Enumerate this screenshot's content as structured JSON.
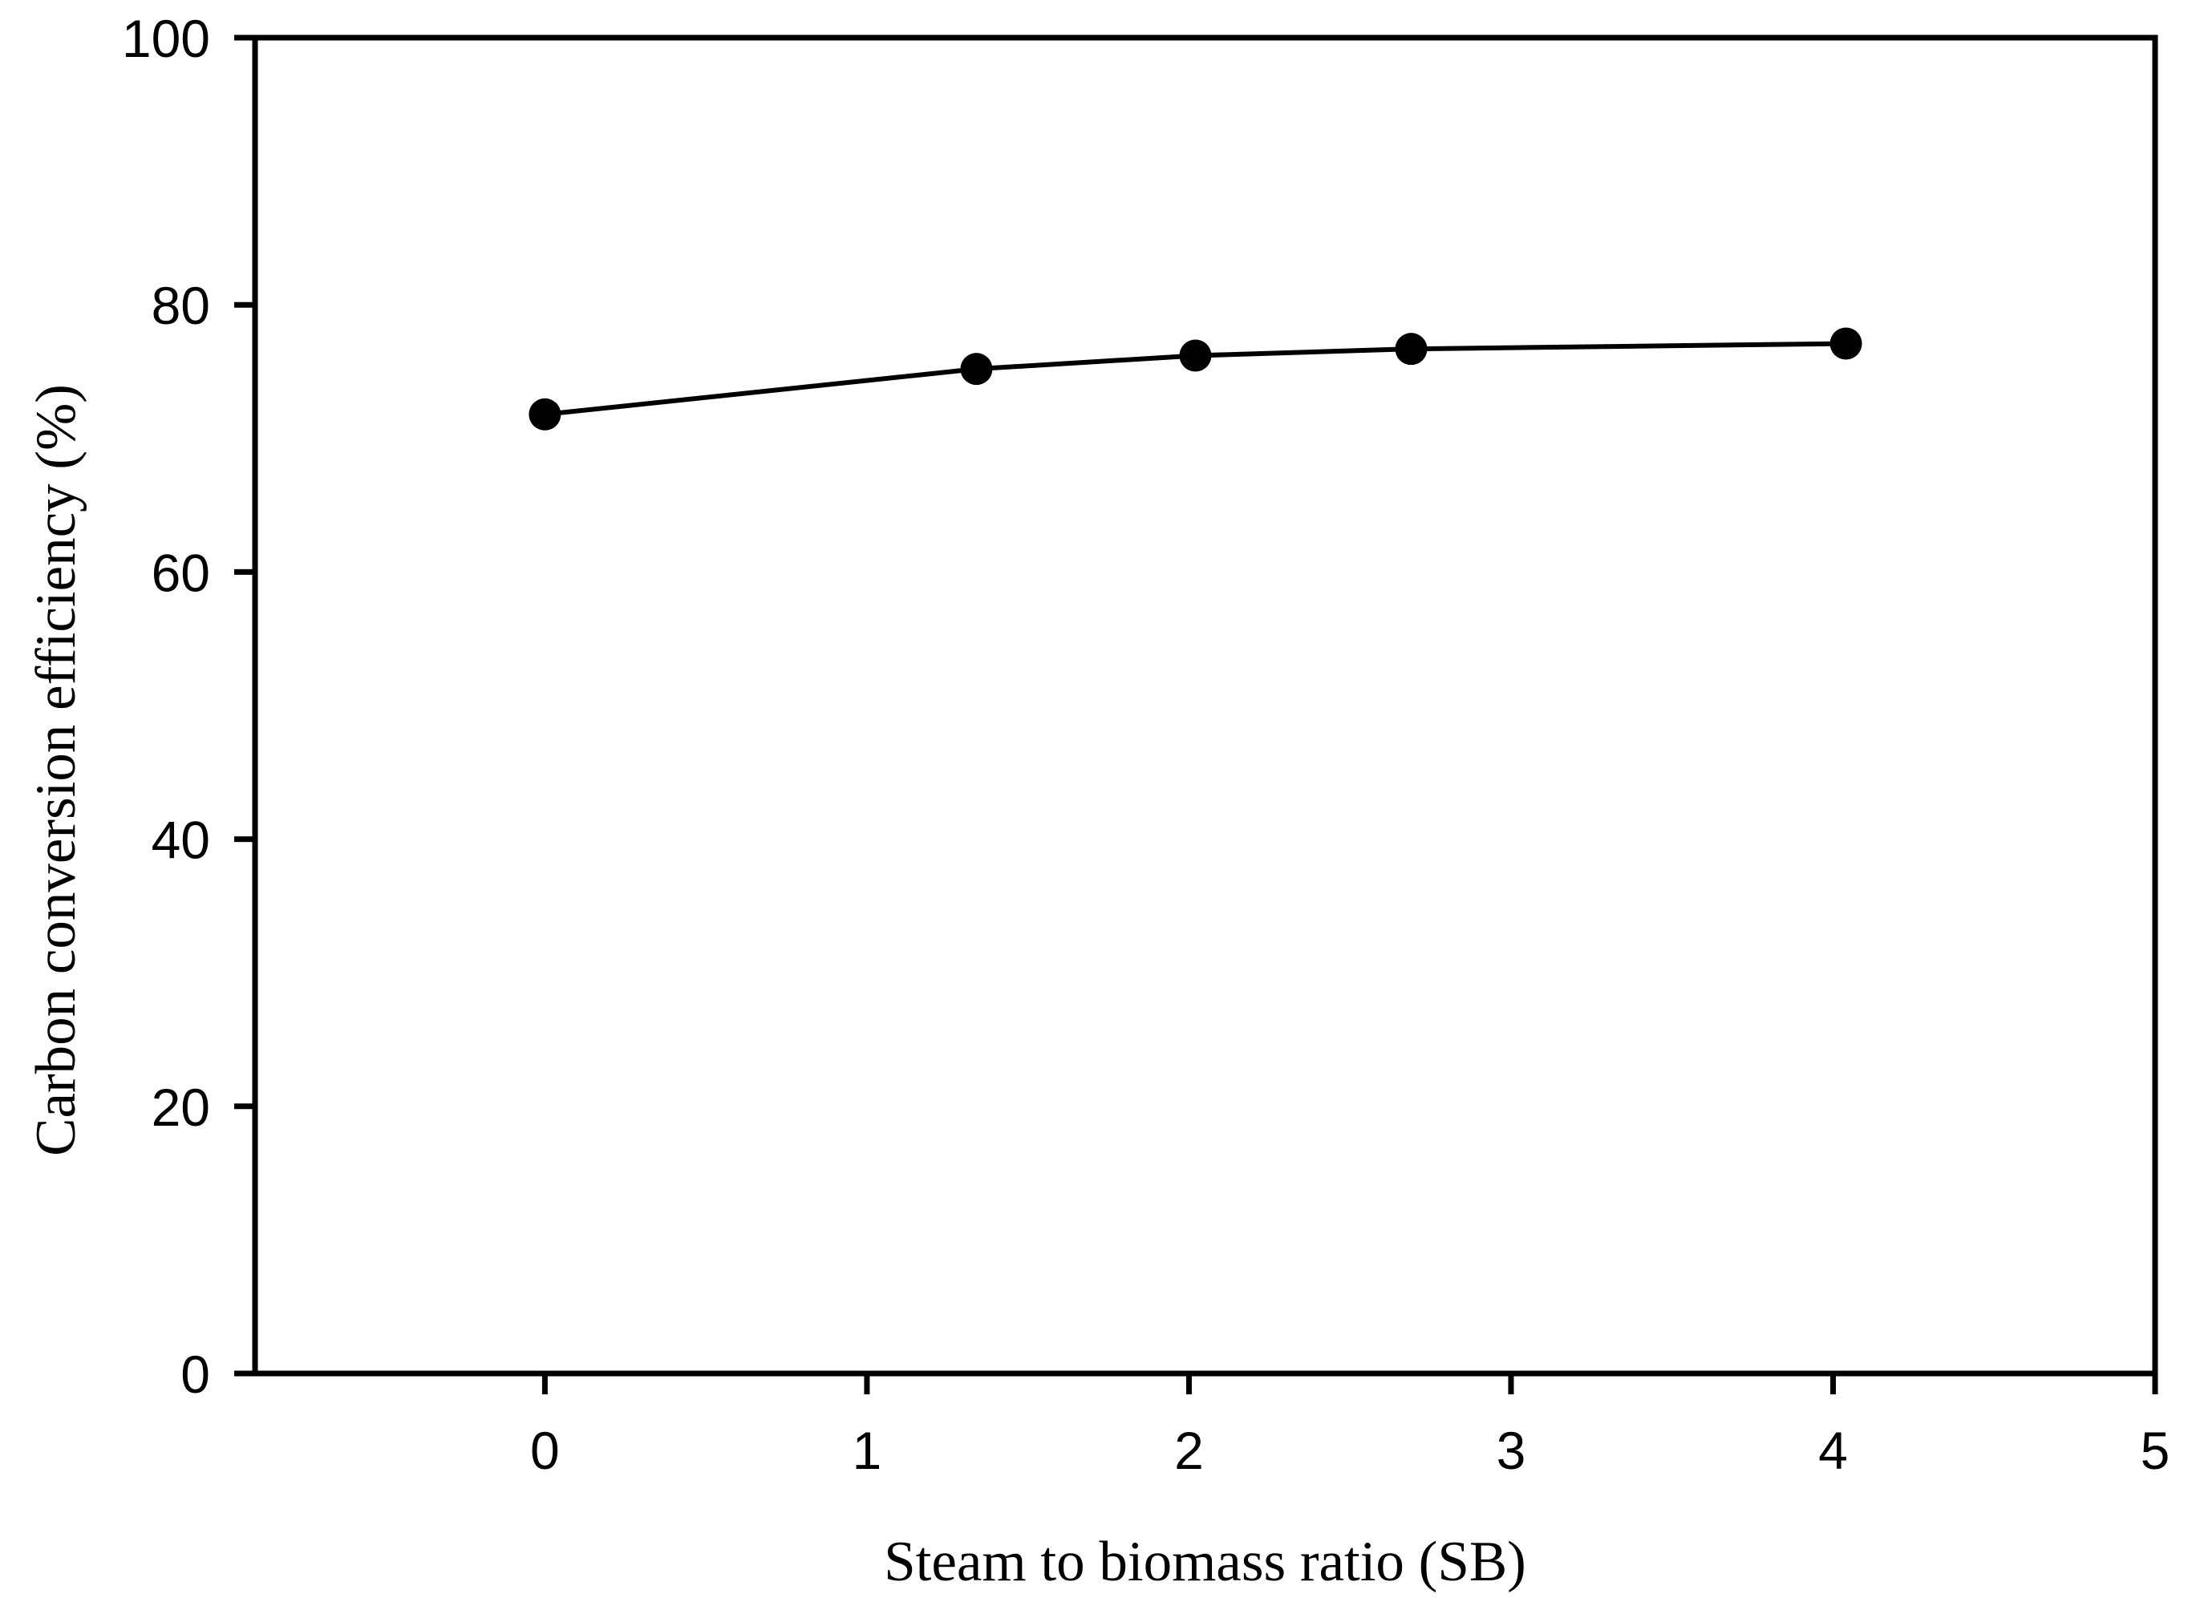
{
  "colors": {
    "background": "#ffffff",
    "foreground": "#000000"
  },
  "chart_data": {
    "type": "line",
    "title": "",
    "xlabel": "Steam to biomass ratio (SB)",
    "ylabel": "Carbon conversion efficiency (%)",
    "xlim": [
      -0.9,
      5
    ],
    "ylim": [
      0,
      100
    ],
    "xticks": [
      0,
      1,
      2,
      3,
      4,
      5
    ],
    "yticks": [
      0,
      20,
      40,
      60,
      80,
      100
    ],
    "grid": false,
    "legend": null,
    "frame": "full-box",
    "tick_direction": "out",
    "series": [
      {
        "name": "Carbon conversion efficiency",
        "marker": "filled-circle",
        "color": "#000000",
        "points": [
          [
            0.0,
            71.8
          ],
          [
            1.34,
            75.2
          ],
          [
            2.02,
            76.2
          ],
          [
            2.69,
            76.7
          ],
          [
            4.04,
            77.1
          ]
        ]
      }
    ]
  }
}
